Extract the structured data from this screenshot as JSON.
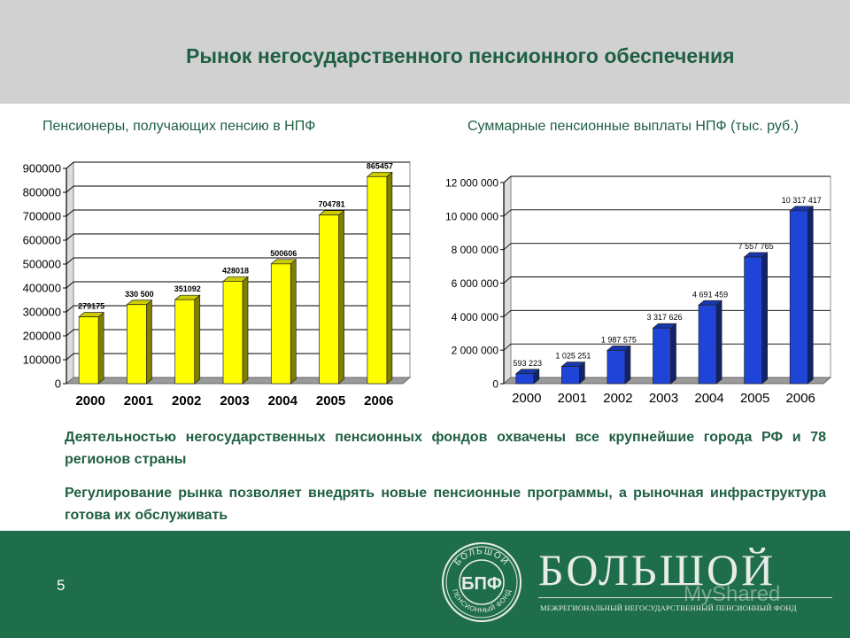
{
  "slide": {
    "title": "Рынок негосударственного пенсионного обеспечения",
    "paragraph1": "Деятельностью негосударственных пенсионных фондов охвачены все крупнейшие города РФ и 78 регионов страны",
    "paragraph2": "Регулирование рынка позволяет внедрять новые пенсионные программы, а рыночная инфраструктура готова их обслуживать",
    "page_number": "5"
  },
  "brand": {
    "name": "БОЛЬШОЙ",
    "subtitle": "МЕЖРЕГИОНАЛЬНЫЙ НЕГОСУДАРСТВЕННЫЙ ПЕНСИОННЫЙ ФОНД",
    "seal_text_top": "БОЛЬШОЙ",
    "seal_text_bottom": "ПЕНСИОННЫЙ ФОНД",
    "seal_monogram": "БПФ",
    "watermark": "MyShared"
  },
  "colors": {
    "text_green": "#1f5f43",
    "footer_green": "#1f6e4b",
    "header_gray": "#d1d1d1",
    "bar_yellow": "#ffff00",
    "bar_blue": "#1f45d8"
  },
  "chart_data": [
    {
      "type": "bar",
      "title": "Пенсионеры, получающих пенсию в НПФ",
      "categories": [
        "2000",
        "2001",
        "2002",
        "2003",
        "2004",
        "2005",
        "2006"
      ],
      "values": [
        279175,
        330500,
        351092,
        428018,
        500606,
        704781,
        865457
      ],
      "value_labels": [
        "279175",
        "330 500",
        "351092",
        "428018",
        "500606",
        "704781",
        "865457"
      ],
      "yticks": [
        "0",
        "100000",
        "200000",
        "300000",
        "400000",
        "500000",
        "600000",
        "700000",
        "800000",
        "900000"
      ],
      "ylim": [
        0,
        900000
      ],
      "grid": true,
      "bar_color": "#ffff00"
    },
    {
      "type": "bar",
      "title": "Суммарные пенсионные выплаты НПФ (тыс. руб.)",
      "categories": [
        "2000",
        "2001",
        "2002",
        "2003",
        "2004",
        "2005",
        "2006"
      ],
      "values": [
        593223,
        1025251,
        1987575,
        3317626,
        4691459,
        7557765,
        10317417
      ],
      "value_labels": [
        "593 223",
        "1 025 251",
        "1 987 575",
        "3 317 626",
        "4 691 459",
        "7 557 765",
        "10 317 417"
      ],
      "yticks": [
        "0",
        "2 000 000",
        "4 000 000",
        "6 000 000",
        "8 000 000",
        "10 000 000",
        "12 000 000"
      ],
      "ylim": [
        0,
        12000000
      ],
      "grid": true,
      "bar_color": "#1f45d8"
    }
  ]
}
